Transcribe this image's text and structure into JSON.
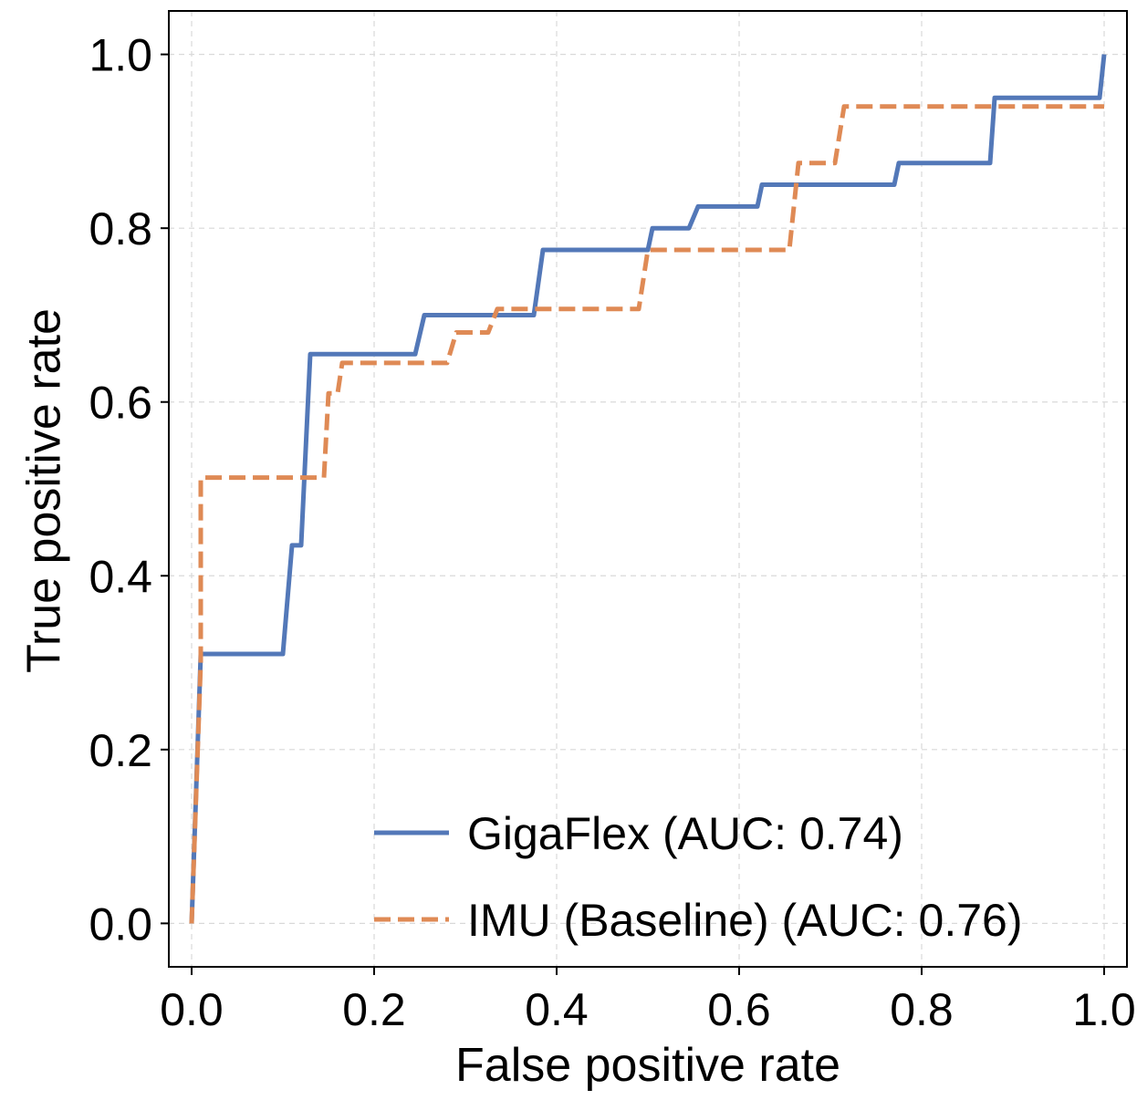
{
  "chart_data": {
    "type": "line",
    "title": "",
    "xlabel": "False positive rate",
    "ylabel": "True positive rate",
    "xlim": [
      -0.025,
      1.025
    ],
    "ylim": [
      -0.05,
      1.05
    ],
    "xticks": [
      0.0,
      0.2,
      0.4,
      0.6,
      0.8,
      1.0
    ],
    "yticks": [
      0.0,
      0.2,
      0.4,
      0.6,
      0.8,
      1.0
    ],
    "xtick_labels": [
      "0.0",
      "0.2",
      "0.4",
      "0.6",
      "0.8",
      "1.0"
    ],
    "ytick_labels": [
      "0.0",
      "0.2",
      "0.4",
      "0.6",
      "0.8",
      "1.0"
    ],
    "grid": true,
    "legend_position": "bottom-right",
    "series": [
      {
        "name": "GigaFlex (AUC: 0.74)",
        "color": "#5378b8",
        "style": "solid",
        "x": [
          0.0,
          0.0,
          0.01,
          0.1,
          0.11,
          0.12,
          0.13,
          0.245,
          0.255,
          0.375,
          0.385,
          0.5,
          0.505,
          0.545,
          0.555,
          0.62,
          0.625,
          0.77,
          0.775,
          0.875,
          0.88,
          0.995,
          1.0
        ],
        "y": [
          0.0,
          0.0,
          0.31,
          0.31,
          0.435,
          0.435,
          0.655,
          0.655,
          0.7,
          0.7,
          0.775,
          0.775,
          0.8,
          0.8,
          0.825,
          0.825,
          0.85,
          0.85,
          0.875,
          0.875,
          0.95,
          0.95,
          1.0
        ]
      },
      {
        "name": "IMU (Baseline) (AUC: 0.76)",
        "color": "#df8a55",
        "style": "dashed",
        "x": [
          0.0,
          0.0,
          0.01,
          0.01,
          0.145,
          0.15,
          0.16,
          0.165,
          0.175,
          0.28,
          0.29,
          0.3,
          0.325,
          0.335,
          0.345,
          0.49,
          0.5,
          0.655,
          0.665,
          0.705,
          0.715,
          1.0
        ],
        "y": [
          0.0,
          0.0,
          0.3,
          0.513,
          0.513,
          0.61,
          0.61,
          0.645,
          0.645,
          0.645,
          0.68,
          0.68,
          0.68,
          0.707,
          0.707,
          0.707,
          0.775,
          0.775,
          0.875,
          0.875,
          0.94,
          0.94
        ]
      }
    ]
  }
}
